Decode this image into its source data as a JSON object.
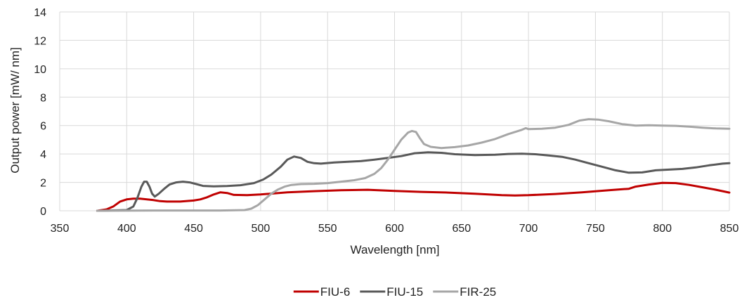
{
  "chart_data": {
    "type": "line",
    "title": "",
    "xlabel": "Wavelength [nm]",
    "ylabel": "Output power [mW/ nm]",
    "xlim": [
      350,
      850
    ],
    "ylim": [
      0,
      14
    ],
    "xticks": [
      350,
      400,
      450,
      500,
      550,
      600,
      650,
      700,
      750,
      800,
      850
    ],
    "yticks": [
      0,
      2,
      4,
      6,
      8,
      10,
      12,
      14
    ],
    "grid": "vertical and horizontal",
    "legend": "bottom-center",
    "series": [
      {
        "name": "FIU-6",
        "color": "#c00000",
        "points": [
          [
            378,
            0
          ],
          [
            385,
            0.1
          ],
          [
            390,
            0.3
          ],
          [
            395,
            0.65
          ],
          [
            400,
            0.8
          ],
          [
            405,
            0.85
          ],
          [
            410,
            0.85
          ],
          [
            415,
            0.8
          ],
          [
            420,
            0.75
          ],
          [
            425,
            0.68
          ],
          [
            430,
            0.65
          ],
          [
            440,
            0.65
          ],
          [
            450,
            0.72
          ],
          [
            455,
            0.8
          ],
          [
            460,
            0.95
          ],
          [
            465,
            1.15
          ],
          [
            470,
            1.3
          ],
          [
            475,
            1.25
          ],
          [
            480,
            1.12
          ],
          [
            490,
            1.1
          ],
          [
            500,
            1.15
          ],
          [
            520,
            1.3
          ],
          [
            540,
            1.38
          ],
          [
            560,
            1.45
          ],
          [
            580,
            1.48
          ],
          [
            600,
            1.4
          ],
          [
            620,
            1.33
          ],
          [
            640,
            1.28
          ],
          [
            660,
            1.2
          ],
          [
            680,
            1.1
          ],
          [
            690,
            1.08
          ],
          [
            700,
            1.1
          ],
          [
            720,
            1.18
          ],
          [
            740,
            1.3
          ],
          [
            760,
            1.45
          ],
          [
            775,
            1.55
          ],
          [
            780,
            1.7
          ],
          [
            790,
            1.85
          ],
          [
            800,
            1.97
          ],
          [
            810,
            1.95
          ],
          [
            820,
            1.82
          ],
          [
            830,
            1.65
          ],
          [
            840,
            1.48
          ],
          [
            850,
            1.28
          ]
        ]
      },
      {
        "name": "FIU-15",
        "color": "#595959",
        "points": [
          [
            378,
            0
          ],
          [
            400,
            0.05
          ],
          [
            405,
            0.3
          ],
          [
            408,
            0.9
          ],
          [
            411,
            1.7
          ],
          [
            413,
            2.05
          ],
          [
            415,
            2.05
          ],
          [
            417,
            1.7
          ],
          [
            419,
            1.2
          ],
          [
            421,
            1.0
          ],
          [
            424,
            1.2
          ],
          [
            428,
            1.55
          ],
          [
            432,
            1.85
          ],
          [
            437,
            2.0
          ],
          [
            442,
            2.05
          ],
          [
            447,
            2.0
          ],
          [
            452,
            1.88
          ],
          [
            457,
            1.75
          ],
          [
            465,
            1.72
          ],
          [
            475,
            1.74
          ],
          [
            485,
            1.8
          ],
          [
            495,
            1.95
          ],
          [
            502,
            2.2
          ],
          [
            508,
            2.55
          ],
          [
            515,
            3.1
          ],
          [
            520,
            3.6
          ],
          [
            525,
            3.82
          ],
          [
            530,
            3.72
          ],
          [
            535,
            3.45
          ],
          [
            540,
            3.35
          ],
          [
            545,
            3.32
          ],
          [
            555,
            3.4
          ],
          [
            565,
            3.45
          ],
          [
            575,
            3.5
          ],
          [
            585,
            3.6
          ],
          [
            595,
            3.72
          ],
          [
            605,
            3.85
          ],
          [
            615,
            4.05
          ],
          [
            625,
            4.12
          ],
          [
            635,
            4.08
          ],
          [
            645,
            3.98
          ],
          [
            660,
            3.92
          ],
          [
            675,
            3.95
          ],
          [
            685,
            4.0
          ],
          [
            695,
            4.02
          ],
          [
            705,
            3.98
          ],
          [
            715,
            3.9
          ],
          [
            725,
            3.8
          ],
          [
            735,
            3.6
          ],
          [
            745,
            3.35
          ],
          [
            755,
            3.1
          ],
          [
            765,
            2.85
          ],
          [
            775,
            2.68
          ],
          [
            785,
            2.7
          ],
          [
            795,
            2.85
          ],
          [
            805,
            2.9
          ],
          [
            815,
            2.95
          ],
          [
            825,
            3.05
          ],
          [
            835,
            3.2
          ],
          [
            845,
            3.32
          ],
          [
            850,
            3.35
          ]
        ]
      },
      {
        "name": "FIR-25",
        "color": "#a6a6a6",
        "points": [
          [
            378,
            0
          ],
          [
            420,
            0.02
          ],
          [
            470,
            0.02
          ],
          [
            488,
            0.05
          ],
          [
            493,
            0.15
          ],
          [
            498,
            0.4
          ],
          [
            503,
            0.8
          ],
          [
            508,
            1.2
          ],
          [
            513,
            1.5
          ],
          [
            518,
            1.7
          ],
          [
            523,
            1.82
          ],
          [
            530,
            1.88
          ],
          [
            540,
            1.9
          ],
          [
            550,
            1.95
          ],
          [
            560,
            2.05
          ],
          [
            570,
            2.15
          ],
          [
            578,
            2.3
          ],
          [
            585,
            2.6
          ],
          [
            590,
            3.0
          ],
          [
            595,
            3.6
          ],
          [
            600,
            4.3
          ],
          [
            605,
            5.0
          ],
          [
            610,
            5.5
          ],
          [
            613,
            5.62
          ],
          [
            616,
            5.55
          ],
          [
            619,
            5.1
          ],
          [
            622,
            4.7
          ],
          [
            627,
            4.5
          ],
          [
            635,
            4.42
          ],
          [
            645,
            4.48
          ],
          [
            655,
            4.6
          ],
          [
            665,
            4.8
          ],
          [
            675,
            5.05
          ],
          [
            685,
            5.4
          ],
          [
            695,
            5.7
          ],
          [
            698,
            5.82
          ],
          [
            700,
            5.75
          ],
          [
            710,
            5.78
          ],
          [
            720,
            5.85
          ],
          [
            730,
            6.05
          ],
          [
            738,
            6.35
          ],
          [
            745,
            6.45
          ],
          [
            752,
            6.42
          ],
          [
            760,
            6.3
          ],
          [
            770,
            6.1
          ],
          [
            780,
            6.0
          ],
          [
            790,
            6.02
          ],
          [
            800,
            6.0
          ],
          [
            810,
            5.98
          ],
          [
            820,
            5.92
          ],
          [
            830,
            5.85
          ],
          [
            840,
            5.8
          ],
          [
            850,
            5.78
          ]
        ]
      }
    ]
  }
}
